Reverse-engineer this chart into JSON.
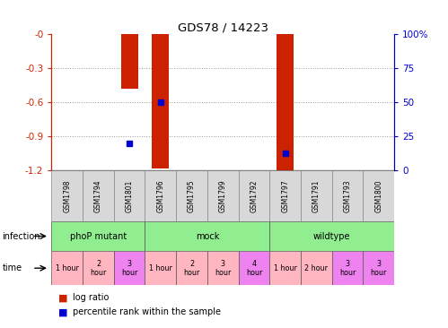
{
  "title": "GDS78 / 14223",
  "samples": [
    "GSM1798",
    "GSM1794",
    "GSM1801",
    "GSM1796",
    "GSM1795",
    "GSM1799",
    "GSM1792",
    "GSM1797",
    "GSM1791",
    "GSM1793",
    "GSM1800"
  ],
  "log_ratio": [
    0,
    0,
    -0.48,
    -1.18,
    0,
    0,
    0,
    -1.22,
    0,
    0,
    0
  ],
  "percentile": [
    null,
    null,
    20,
    50,
    null,
    null,
    null,
    13,
    null,
    null,
    null
  ],
  "ylim_left": [
    -1.2,
    0
  ],
  "ylim_right": [
    0,
    100
  ],
  "yticks_left": [
    0,
    -0.3,
    -0.6,
    -0.9,
    -1.2
  ],
  "ytick_labels_left": [
    "-0",
    "-0.3",
    "-0.6",
    "-0.9",
    "-1.2"
  ],
  "yticks_right": [
    0,
    25,
    50,
    75,
    100
  ],
  "ytick_labels_right": [
    "0",
    "25",
    "50",
    "75",
    "100%"
  ],
  "infection_groups": [
    {
      "label": "phoP mutant",
      "start": 0,
      "end": 3
    },
    {
      "label": "mock",
      "start": 3,
      "end": 7
    },
    {
      "label": "wildtype",
      "start": 7,
      "end": 11
    }
  ],
  "time_data": [
    {
      "label": "1 hour",
      "color": "#FFB6C1"
    },
    {
      "label": "2\nhour",
      "color": "#FFB6C1"
    },
    {
      "label": "3\nhour",
      "color": "#EE82EE"
    },
    {
      "label": "1 hour",
      "color": "#FFB6C1"
    },
    {
      "label": "2\nhour",
      "color": "#FFB6C1"
    },
    {
      "label": "3\nhour",
      "color": "#FFB6C1"
    },
    {
      "label": "4\nhour",
      "color": "#EE82EE"
    },
    {
      "label": "1 hour",
      "color": "#FFB6C1"
    },
    {
      "label": "2 hour",
      "color": "#FFB6C1"
    },
    {
      "label": "3\nhour",
      "color": "#EE82EE"
    }
  ],
  "bar_color": "#CC2200",
  "dot_color": "#0000CC",
  "grid_color": "#888888",
  "bg_color": "#FFFFFF",
  "left_axis_color": "#CC2200",
  "right_axis_color": "#0000CC",
  "inf_color": "#90EE90"
}
